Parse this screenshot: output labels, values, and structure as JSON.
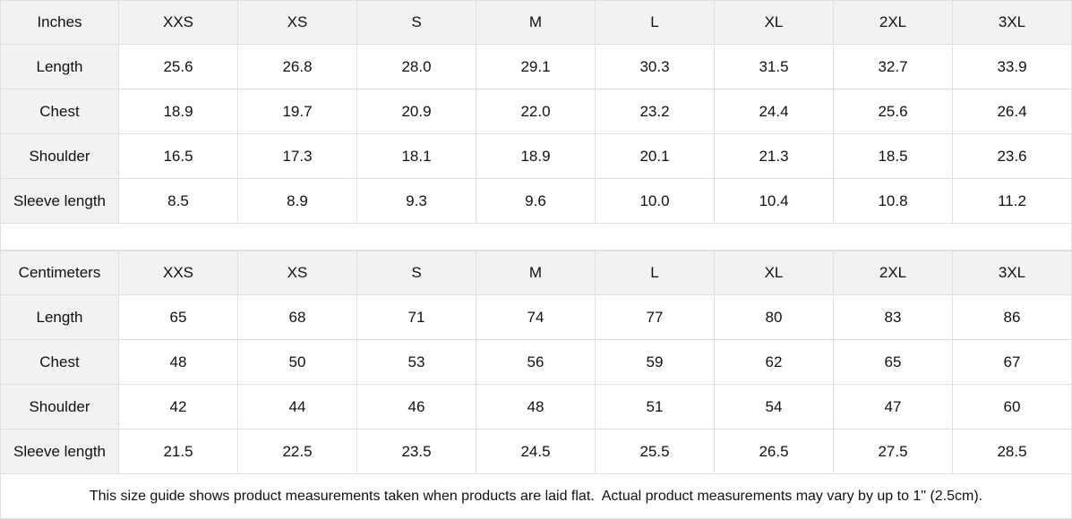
{
  "tables": [
    {
      "unit_label": "Inches",
      "sizes": [
        "XXS",
        "XS",
        "S",
        "M",
        "L",
        "XL",
        "2XL",
        "3XL"
      ],
      "rows": [
        {
          "label": "Length",
          "values": [
            "25.6",
            "26.8",
            "28.0",
            "29.1",
            "30.3",
            "31.5",
            "32.7",
            "33.9"
          ]
        },
        {
          "label": "Chest",
          "values": [
            "18.9",
            "19.7",
            "20.9",
            "22.0",
            "23.2",
            "24.4",
            "25.6",
            "26.4"
          ]
        },
        {
          "label": "Shoulder",
          "values": [
            "16.5",
            "17.3",
            "18.1",
            "18.9",
            "20.1",
            "21.3",
            "18.5",
            "23.6"
          ]
        },
        {
          "label": "Sleeve length",
          "values": [
            "8.5",
            "8.9",
            "9.3",
            "9.6",
            "10.0",
            "10.4",
            "10.8",
            "11.2"
          ]
        }
      ]
    },
    {
      "unit_label": "Centimeters",
      "sizes": [
        "XXS",
        "XS",
        "S",
        "M",
        "L",
        "XL",
        "2XL",
        "3XL"
      ],
      "rows": [
        {
          "label": "Length",
          "values": [
            "65",
            "68",
            "71",
            "74",
            "77",
            "80",
            "83",
            "86"
          ]
        },
        {
          "label": "Chest",
          "values": [
            "48",
            "50",
            "53",
            "56",
            "59",
            "62",
            "65",
            "67"
          ]
        },
        {
          "label": "Shoulder",
          "values": [
            "42",
            "44",
            "46",
            "48",
            "51",
            "54",
            "47",
            "60"
          ]
        },
        {
          "label": "Sleeve length",
          "values": [
            "21.5",
            "22.5",
            "23.5",
            "24.5",
            "25.5",
            "26.5",
            "27.5",
            "28.5"
          ]
        }
      ]
    }
  ],
  "footnote": "This size guide shows product measurements taken when products are laid flat.  Actual product measurements may vary by up to 1\" (2.5cm).",
  "colors": {
    "header_bg": "#f2f2f2",
    "border": "#e0e0e0"
  }
}
